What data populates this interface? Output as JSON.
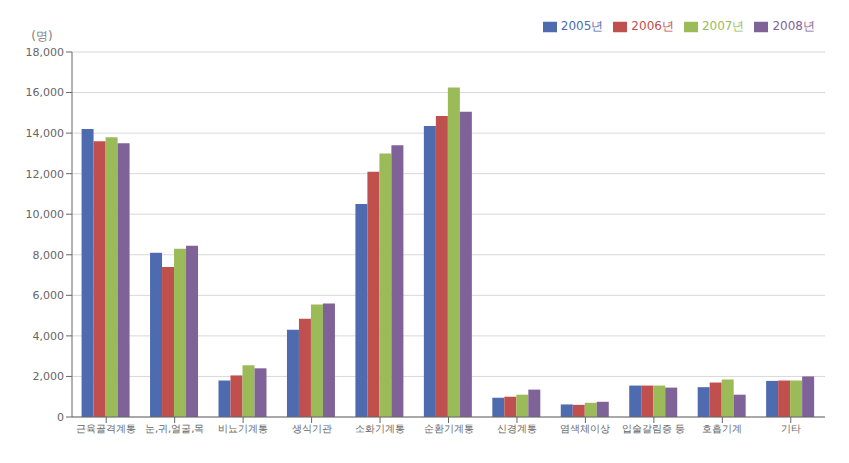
{
  "chart_data": {
    "type": "bar",
    "ylabel": "(명)",
    "categories": [
      "근육골격계통",
      "눈,귀,얼굴,목",
      "비뇨기계통",
      "생식기관",
      "소화기계통",
      "순환기계통",
      "신경계통",
      "염색체이상",
      "입술갈림증 등",
      "호흡기계",
      "기타"
    ],
    "series": [
      {
        "name": "2005년",
        "color": "#4f6baf",
        "values": [
          14200,
          8100,
          1800,
          4300,
          10500,
          14350,
          950,
          620,
          1550,
          1470,
          1780
        ]
      },
      {
        "name": "2006년",
        "color": "#c0504d",
        "values": [
          13600,
          7400,
          2050,
          4850,
          12100,
          14850,
          1000,
          600,
          1550,
          1700,
          1800
        ]
      },
      {
        "name": "2007년",
        "color": "#9bbb59",
        "values": [
          13800,
          8300,
          2550,
          5550,
          13000,
          16250,
          1100,
          700,
          1550,
          1850,
          1800
        ]
      },
      {
        "name": "2008년",
        "color": "#7f6298",
        "values": [
          13500,
          8450,
          2400,
          5600,
          13400,
          15050,
          1350,
          750,
          1450,
          1100,
          2000
        ]
      }
    ],
    "ylim": [
      0,
      18000
    ],
    "yticks": [
      0,
      {
        "value": 2000,
        "label": "2,000"
      },
      {
        "value": 4000,
        "label": "4,000"
      },
      {
        "value": 6000,
        "label": "6,000"
      },
      {
        "value": 8000,
        "label": "8,000"
      },
      {
        "value": 10000,
        "label": "10,000"
      },
      {
        "value": 12000,
        "label": "12,000"
      },
      {
        "value": 14000,
        "label": "14,000"
      },
      {
        "value": 16000,
        "label": "16,000"
      },
      {
        "value": 18000,
        "label": "18,000"
      }
    ],
    "grid": true,
    "legend": "upper right"
  }
}
